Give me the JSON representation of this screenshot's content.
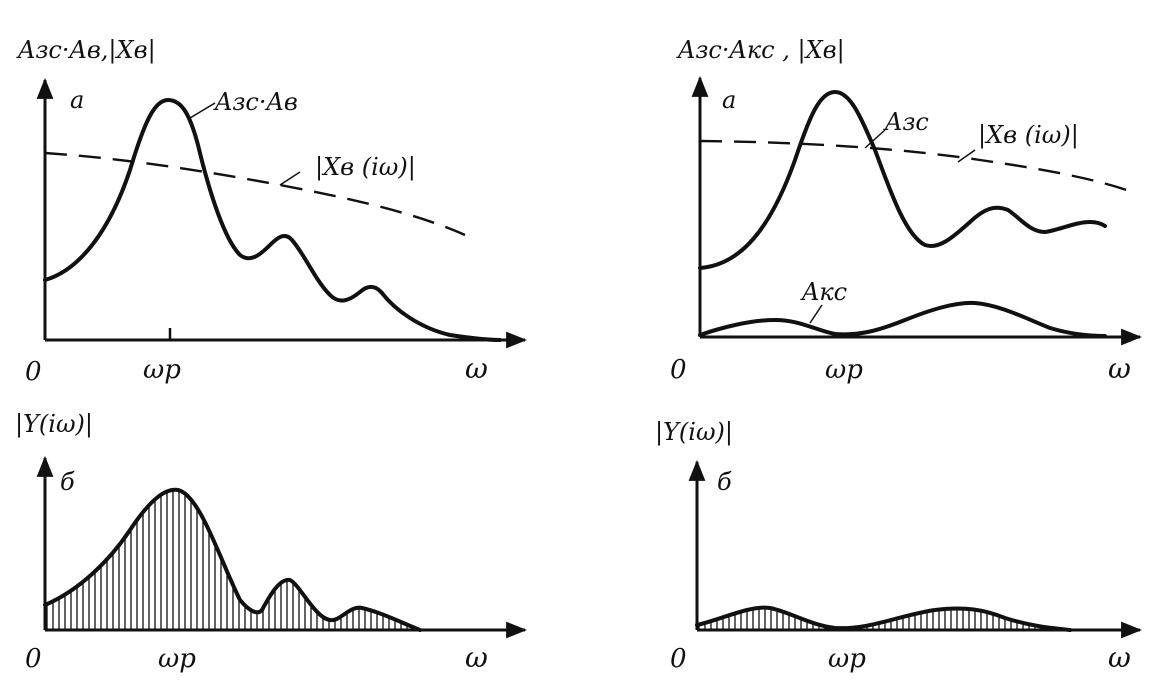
{
  "panels": {
    "top_left": {
      "y_label": "Aзс·Aв,|Xв|",
      "tag": "a",
      "curve_label": "Aзс·Aв",
      "dashed_label": "|Xв (iω)|",
      "origin": "0",
      "x_label": "ω",
      "tick_label": "ωp"
    },
    "top_right": {
      "y_label": "Aзс·Aкс , |Xв|",
      "tag": "a",
      "curve1_label": "Aзс",
      "curve2_label": "Aкс",
      "dashed_label": "|Xв (iω)|",
      "origin": "0",
      "x_label": "ω",
      "tick_label": "ωp"
    },
    "bottom_left": {
      "y_label": "|Y(iω)|",
      "tag": "б",
      "origin": "0",
      "x_label": "ω",
      "tick_label": "ωp"
    },
    "bottom_right": {
      "y_label": "|Y(iω)|",
      "tag": "б",
      "origin": "0",
      "x_label": "ω",
      "tick_label": "ωp"
    }
  }
}
